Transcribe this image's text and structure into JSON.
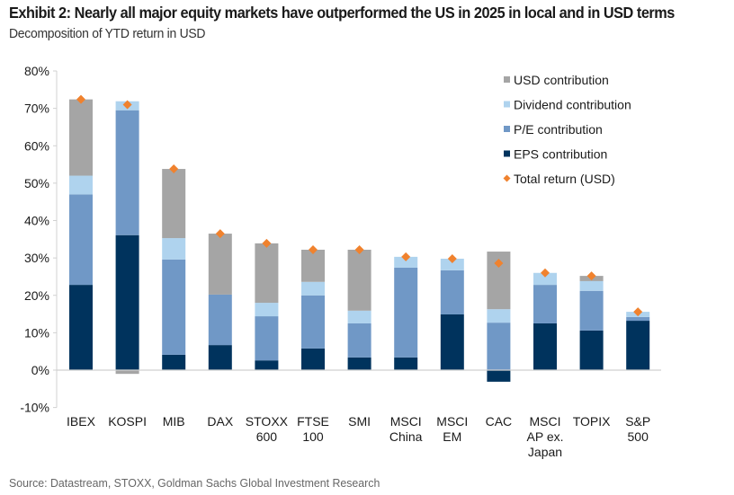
{
  "header": {
    "title": "Exhibit 2: Nearly all major equity markets have outperformed the US in 2025 in local and in USD terms",
    "subtitle": "Decomposition of YTD return in USD"
  },
  "footer": {
    "source": "Source: Datastream, STOXX, Goldman Sachs Global Investment Research"
  },
  "chart_data": {
    "type": "bar",
    "stacked": true,
    "title": "Exhibit 2: Nearly all major equity markets have outperformed the US in 2025 in local and in USD terms",
    "subtitle": "Decomposition of YTD return in USD",
    "xlabel": "",
    "ylabel": "",
    "ylim": [
      -10,
      80
    ],
    "yticks": [
      -10,
      0,
      10,
      20,
      30,
      40,
      50,
      60,
      70,
      80
    ],
    "ytick_format": "percent",
    "grid": false,
    "legend_position": "top-right",
    "categories": [
      [
        "IBEX"
      ],
      [
        "KOSPI"
      ],
      [
        "MIB"
      ],
      [
        "DAX"
      ],
      [
        "STOXX",
        "600"
      ],
      [
        "FTSE",
        "100"
      ],
      [
        "SMI"
      ],
      [
        "MSCI",
        "China"
      ],
      [
        "MSCI",
        "EM"
      ],
      [
        "CAC"
      ],
      [
        "MSCI",
        "AP ex.",
        "Japan"
      ],
      [
        "TOPIX"
      ],
      [
        "S&P",
        "500"
      ]
    ],
    "series": [
      {
        "name": "EPS contribution",
        "color": "#00335D",
        "values": [
          22.8,
          36.1,
          4.1,
          6.7,
          2.6,
          5.8,
          3.4,
          3.4,
          14.9,
          -3.1,
          12.5,
          10.6,
          13.2
        ]
      },
      {
        "name": "P/E contribution",
        "color": "#7098C6",
        "values": [
          24.2,
          33.4,
          25.5,
          13.5,
          11.8,
          14.2,
          9.1,
          24.0,
          11.8,
          12.7,
          10.3,
          10.6,
          1.0
        ]
      },
      {
        "name": "Dividend contribution",
        "color": "#AFD3EE",
        "values": [
          5.0,
          2.4,
          5.7,
          0.0,
          3.6,
          3.6,
          3.4,
          2.9,
          3.1,
          3.6,
          3.2,
          2.6,
          1.4
        ]
      },
      {
        "name": "USD contribution",
        "color": "#A5A5A5",
        "values": [
          20.4,
          -1.0,
          18.5,
          16.3,
          15.9,
          8.6,
          16.3,
          0.0,
          0.0,
          15.4,
          0.0,
          1.4,
          0.0
        ]
      }
    ],
    "total_return": {
      "name": "Total return (USD)",
      "color": "#F0822E",
      "marker": "diamond",
      "values": [
        72.4,
        71.0,
        53.8,
        36.5,
        33.9,
        32.2,
        32.2,
        30.3,
        29.8,
        28.6,
        26.0,
        25.2,
        15.6
      ]
    },
    "legend": [
      {
        "label": "USD contribution",
        "color": "#A5A5A5",
        "marker": "square"
      },
      {
        "label": "Dividend contribution",
        "color": "#AFD3EE",
        "marker": "square"
      },
      {
        "label": "P/E contribution",
        "color": "#7098C6",
        "marker": "square"
      },
      {
        "label": "EPS contribution",
        "color": "#00335D",
        "marker": "square"
      },
      {
        "label": "Total return (USD)",
        "color": "#F0822E",
        "marker": "diamond"
      }
    ]
  }
}
